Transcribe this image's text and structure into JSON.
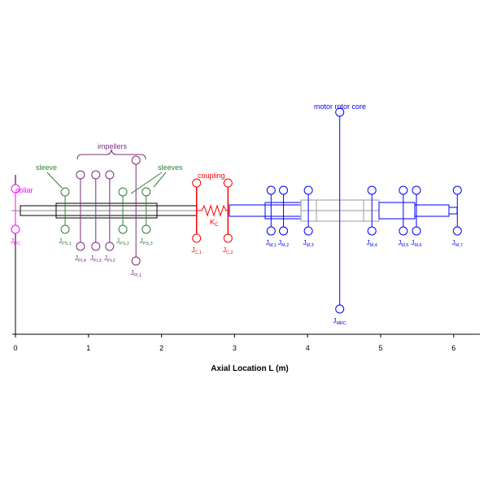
{
  "axis": {
    "xlabel": "Axial Location L (m)",
    "ticks": [
      "0",
      "1",
      "2",
      "3",
      "4",
      "5",
      "6"
    ],
    "range_m": [
      0,
      6.5
    ]
  },
  "colors": {
    "pump": "#000000",
    "collar": "#ff00ff",
    "sleeve": "#2e7d32",
    "impeller": "#7b2d7b",
    "coupling": "#ff0000",
    "motor": "#0000ff",
    "core": "#999999"
  },
  "annotations": {
    "collar": "collar",
    "sleeve": "sleeve",
    "impellers": "impellers",
    "sleeves": "sleeves",
    "coupling": "coupling",
    "motor_rotor_core": "motor rotor core",
    "kc_main": "K",
    "kc_sub": "C"
  },
  "disks": [
    {
      "main": "J",
      "sub": "PC",
      "loc_m": 0.0,
      "group": "collar"
    },
    {
      "main": "J",
      "sub": "PS,1",
      "loc_m": 0.68,
      "group": "sleeve"
    },
    {
      "main": "J",
      "sub": "PI,4",
      "loc_m": 0.89,
      "group": "impeller"
    },
    {
      "main": "J",
      "sub": "PI,3",
      "loc_m": 1.1,
      "group": "impeller"
    },
    {
      "main": "J",
      "sub": "PI,2",
      "loc_m": 1.29,
      "group": "impeller"
    },
    {
      "main": "J",
      "sub": "PS,2",
      "loc_m": 1.47,
      "group": "sleeve"
    },
    {
      "main": "J",
      "sub": "PI,1",
      "loc_m": 1.65,
      "group": "impeller"
    },
    {
      "main": "J",
      "sub": "PS,3",
      "loc_m": 1.79,
      "group": "sleeve"
    },
    {
      "main": "J",
      "sub": "C,1",
      "loc_m": 2.48,
      "group": "coupling"
    },
    {
      "main": "J",
      "sub": "C,2",
      "loc_m": 2.91,
      "group": "coupling"
    },
    {
      "main": "J",
      "sub": "M,1",
      "loc_m": 3.5,
      "group": "motor"
    },
    {
      "main": "J",
      "sub": "M,2",
      "loc_m": 3.67,
      "group": "motor"
    },
    {
      "main": "J",
      "sub": "M,3",
      "loc_m": 4.01,
      "group": "motor"
    },
    {
      "main": "J",
      "sub": "MRC",
      "loc_m": 4.44,
      "group": "motor"
    },
    {
      "main": "J",
      "sub": "M,4",
      "loc_m": 4.88,
      "group": "motor"
    },
    {
      "main": "J",
      "sub": "M,5",
      "loc_m": 5.31,
      "group": "motor"
    },
    {
      "main": "J",
      "sub": "M,6",
      "loc_m": 5.49,
      "group": "motor"
    },
    {
      "main": "J",
      "sub": "M,7",
      "loc_m": 6.05,
      "group": "motor"
    }
  ]
}
